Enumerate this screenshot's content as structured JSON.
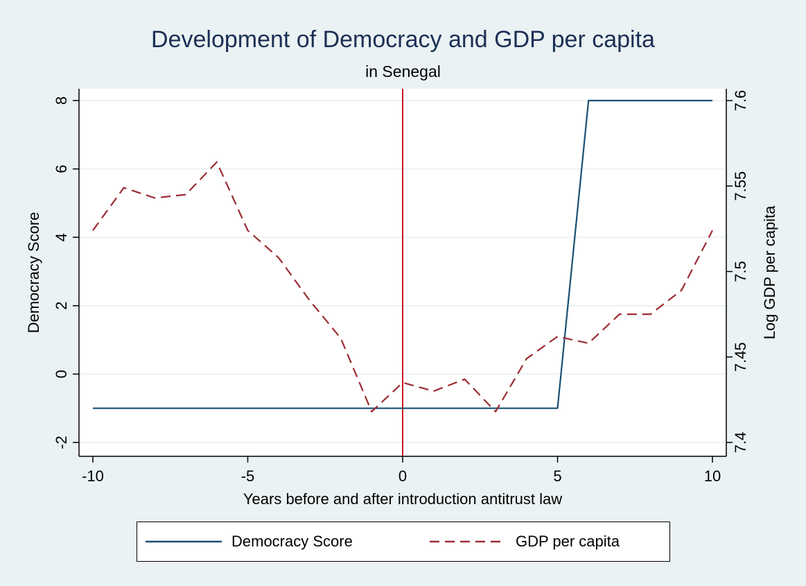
{
  "title": "Development of Democracy and GDP per capita",
  "subtitle": "in Senegal",
  "chart_data": {
    "type": "line",
    "title": "Development of Democracy and GDP per capita",
    "subtitle": "in Senegal",
    "xlabel": "Years before and after introduction antitrust law",
    "ylabel": "Democracy Score",
    "y2label": "Log GDP per capita",
    "xlim": [
      -10,
      10
    ],
    "ylim": [
      -2,
      8
    ],
    "y2lim": [
      7.4,
      7.6
    ],
    "xticks": [
      "-10",
      "-5",
      "0",
      "5",
      "10"
    ],
    "yticks": [
      "-2",
      "0",
      "2",
      "4",
      "6",
      "8"
    ],
    "y2ticks": [
      "7.4",
      "7.45",
      "7.5",
      "7.55",
      "7.6"
    ],
    "grid": true,
    "legend_position": "bottom",
    "vline": {
      "x": 0,
      "color": "#c8102e"
    },
    "series": [
      {
        "name": "Democracy Score",
        "axis": "left",
        "style": "solid",
        "color": "#1a4f72",
        "x": [
          -10,
          -9,
          -8,
          -7,
          -6,
          -5,
          -4,
          -3,
          -2,
          -1,
          0,
          1,
          2,
          3,
          4,
          5,
          6,
          7,
          8,
          9,
          10
        ],
        "values": [
          -1,
          -1,
          -1,
          -1,
          -1,
          -1,
          -1,
          -1,
          -1,
          -1,
          -1,
          -1,
          -1,
          -1,
          -1,
          -1,
          8,
          8,
          8,
          8,
          8
        ]
      },
      {
        "name": "GDP per capita",
        "axis": "right",
        "style": "dashed",
        "color": "#9c2b33",
        "x": [
          -10,
          -9,
          -8,
          -7,
          -6,
          -5,
          -4,
          -3,
          -2,
          -1,
          0,
          1,
          2,
          3,
          4,
          5,
          6,
          7,
          8,
          9,
          10
        ],
        "values": [
          7.524,
          7.549,
          7.543,
          7.545,
          7.564,
          7.524,
          7.508,
          7.483,
          7.461,
          7.418,
          7.435,
          7.43,
          7.437,
          7.418,
          7.449,
          7.462,
          7.458,
          7.475,
          7.475,
          7.489,
          7.524
        ]
      }
    ]
  },
  "legend": {
    "democracy_label": "Democracy Score",
    "gdp_label": "GDP per capita"
  }
}
